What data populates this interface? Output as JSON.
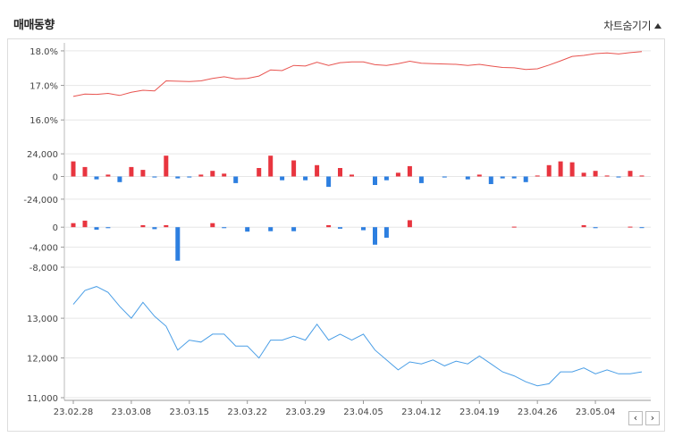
{
  "header": {
    "title": "매매동향",
    "toggle_label": "차트숨기기"
  },
  "nav": {
    "prev": "‹",
    "next": "›"
  },
  "colors": {
    "price_line": "#e8534f",
    "positive": "#e8353f",
    "negative": "#2d7fe0",
    "bottom_line": "#4a9ee6",
    "grid": "#e6e6e6"
  },
  "chart_data": [
    {
      "type": "line",
      "name": "percent-panel",
      "ylim": [
        15.85,
        18.05
      ],
      "yticks": [
        "18.0%",
        "17.0%",
        "16.0%"
      ],
      "ytick_values": [
        18.0,
        17.0,
        16.0
      ],
      "values": [
        16.68,
        16.75,
        16.74,
        16.77,
        16.71,
        16.8,
        16.86,
        16.84,
        17.13,
        17.12,
        17.11,
        17.13,
        17.2,
        17.25,
        17.19,
        17.2,
        17.27,
        17.45,
        17.43,
        17.58,
        17.56,
        17.67,
        17.58,
        17.66,
        17.68,
        17.68,
        17.6,
        17.58,
        17.63,
        17.7,
        17.64,
        17.63,
        17.62,
        17.61,
        17.58,
        17.61,
        17.56,
        17.52,
        17.51,
        17.46,
        17.48,
        17.59,
        17.71,
        17.84,
        17.87,
        17.92,
        17.94,
        17.91,
        17.95,
        17.98
      ]
    },
    {
      "type": "bar",
      "name": "volume-panel-1",
      "ylim": [
        -26000,
        26000
      ],
      "yticks": [
        "24,000",
        "0",
        "-24,000"
      ],
      "ytick_values": [
        24000,
        0,
        -24000
      ],
      "values": [
        16000,
        10000,
        -3000,
        2000,
        -6000,
        10000,
        7000,
        -1000,
        22000,
        -2000,
        -1000,
        2000,
        6000,
        3000,
        -7000,
        0,
        9000,
        22000,
        -4000,
        17000,
        -4000,
        12000,
        -11000,
        9000,
        2000,
        0,
        -9000,
        -4000,
        4000,
        11000,
        -7000,
        0,
        -1000,
        0,
        -3000,
        2000,
        -8000,
        -2000,
        -2000,
        -6000,
        1000,
        12000,
        16000,
        15000,
        4000,
        6000,
        1000,
        -1000,
        6000,
        1000
      ]
    },
    {
      "type": "bar",
      "name": "volume-panel-2",
      "ylim": [
        -10500,
        2000
      ],
      "yticks": [
        "0",
        "-4,000",
        "-8,000"
      ],
      "ytick_values": [
        0,
        -4000,
        -8000
      ],
      "values": [
        800,
        1300,
        -500,
        -200,
        0,
        0,
        400,
        -400,
        400,
        -6700,
        0,
        0,
        800,
        -200,
        0,
        -900,
        0,
        -800,
        0,
        -800,
        0,
        0,
        400,
        -300,
        0,
        -600,
        -3500,
        -2100,
        0,
        1400,
        0,
        0,
        0,
        0,
        0,
        0,
        0,
        0,
        100,
        0,
        0,
        0,
        0,
        0,
        400,
        -200,
        0,
        0,
        100,
        -100
      ]
    },
    {
      "type": "line",
      "name": "price-panel",
      "ylim": [
        11000,
        13700
      ],
      "yticks": [
        "13,000",
        "12,000",
        "11,000"
      ],
      "ytick_values": [
        13000,
        12000,
        11000
      ],
      "values": [
        13350,
        13700,
        13800,
        13650,
        13300,
        13000,
        13400,
        13050,
        12800,
        12200,
        12450,
        12400,
        12600,
        12600,
        12300,
        12300,
        12000,
        12450,
        12450,
        12550,
        12450,
        12850,
        12450,
        12600,
        12450,
        12600,
        12200,
        11950,
        11700,
        11900,
        11850,
        11950,
        11800,
        11920,
        11850,
        12050,
        11850,
        11650,
        11550,
        11400,
        11300,
        11350,
        11650,
        11650,
        11750,
        11600,
        11700,
        11600,
        11600,
        11650
      ]
    }
  ],
  "x_axis": {
    "labels": [
      "23.02.28",
      "23.03.08",
      "23.03.15",
      "23.03.22",
      "23.03.29",
      "23.04.05",
      "23.04.12",
      "23.04.19",
      "23.04.26",
      "23.05.04"
    ]
  }
}
